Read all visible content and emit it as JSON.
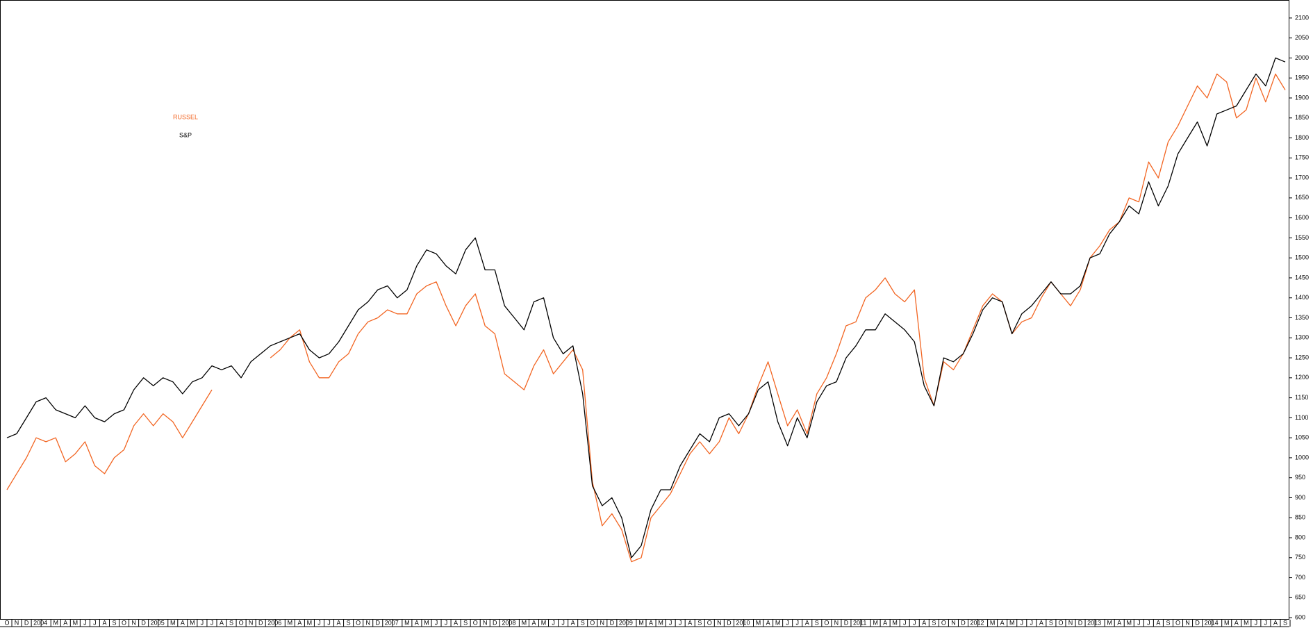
{
  "chart_data": {
    "type": "line",
    "categories": [
      "O",
      "N",
      "D",
      "2004",
      null,
      "M",
      "A",
      "M",
      "J",
      "J",
      "A",
      "S",
      "O",
      "N",
      "D",
      "2005",
      null,
      "M",
      "A",
      "M",
      "J",
      "J",
      "A",
      "S",
      "O",
      "N",
      "D",
      "2006",
      null,
      "M",
      "A",
      "M",
      "J",
      "J",
      "A",
      "S",
      "O",
      "N",
      "D",
      "2007",
      null,
      "M",
      "A",
      "M",
      "J",
      "J",
      "A",
      "S",
      "O",
      "N",
      "D",
      "2008",
      null,
      "M",
      "A",
      "M",
      "J",
      "J",
      "A",
      "S",
      "O",
      "N",
      "D",
      "2009",
      null,
      "M",
      "A",
      "M",
      "J",
      "J",
      "A",
      "S",
      "O",
      "N",
      "D",
      "2010",
      null,
      "M",
      "A",
      "M",
      "J",
      "J",
      "A",
      "S",
      "O",
      "N",
      "D",
      "2011",
      null,
      "M",
      "A",
      "M",
      "J",
      "J",
      "A",
      "S",
      "O",
      "N",
      "D",
      "2012",
      null,
      "M",
      "A",
      "M",
      "J",
      "J",
      "A",
      "S",
      "O",
      "N",
      "D",
      "2013",
      null,
      "M",
      "A",
      "M",
      "J",
      "J",
      "A",
      "S",
      "O",
      "N",
      "D",
      "2014",
      null,
      "M",
      "A",
      "M",
      "J",
      "J",
      "A",
      "S"
    ],
    "series": [
      {
        "name": "RUSSEL",
        "color": "#f26522",
        "values": [
          920,
          960,
          1000,
          1050,
          1040,
          1050,
          990,
          1010,
          1040,
          980,
          960,
          1000,
          1020,
          1080,
          1110,
          1080,
          1110,
          1090,
          1050,
          1090,
          1130,
          1170,
          null,
          null,
          null,
          null,
          null,
          1250,
          1270,
          1300,
          1320,
          1240,
          1200,
          1200,
          1240,
          1260,
          1310,
          1340,
          1350,
          1370,
          1360,
          1360,
          1410,
          1430,
          1440,
          1380,
          1330,
          1380,
          1410,
          1330,
          1310,
          1210,
          1190,
          1170,
          1230,
          1270,
          1210,
          1240,
          1270,
          1220,
          940,
          830,
          860,
          820,
          740,
          750,
          850,
          880,
          910,
          960,
          1010,
          1040,
          1010,
          1040,
          1100,
          1060,
          1110,
          1180,
          1240,
          1160,
          1080,
          1120,
          1060,
          1160,
          1200,
          1260,
          1330,
          1340,
          1400,
          1420,
          1450,
          1410,
          1390,
          1420,
          1200,
          1130,
          1240,
          1220,
          1260,
          1320,
          1380,
          1410,
          1390,
          1310,
          1340,
          1350,
          1400,
          1440,
          1410,
          1380,
          1420,
          1500,
          1530,
          1570,
          1590,
          1650,
          1640,
          1740,
          1700,
          1790,
          1830,
          1880,
          1930,
          1900,
          1960,
          1940,
          1850,
          1870,
          1950,
          1890,
          1960,
          1920
        ]
      },
      {
        "name": "S&P",
        "color": "#000000",
        "values": [
          1050,
          1060,
          1100,
          1140,
          1150,
          1120,
          1110,
          1100,
          1130,
          1100,
          1090,
          1110,
          1120,
          1170,
          1200,
          1180,
          1200,
          1190,
          1160,
          1190,
          1200,
          1230,
          1220,
          1230,
          1200,
          1240,
          1260,
          1280,
          1290,
          1300,
          1310,
          1270,
          1250,
          1260,
          1290,
          1330,
          1370,
          1390,
          1420,
          1430,
          1400,
          1420,
          1480,
          1520,
          1510,
          1480,
          1460,
          1520,
          1550,
          1470,
          1470,
          1380,
          1350,
          1320,
          1390,
          1400,
          1300,
          1260,
          1280,
          1160,
          930,
          880,
          900,
          850,
          750,
          780,
          870,
          920,
          920,
          980,
          1020,
          1060,
          1040,
          1100,
          1110,
          1080,
          1110,
          1170,
          1190,
          1090,
          1030,
          1100,
          1050,
          1140,
          1180,
          1190,
          1250,
          1280,
          1320,
          1320,
          1360,
          1340,
          1320,
          1290,
          1180,
          1130,
          1250,
          1240,
          1260,
          1310,
          1370,
          1400,
          1390,
          1310,
          1360,
          1380,
          1410,
          1440,
          1410,
          1410,
          1430,
          1500,
          1510,
          1560,
          1590,
          1630,
          1610,
          1690,
          1630,
          1680,
          1760,
          1800,
          1840,
          1780,
          1860,
          1870,
          1880,
          1920,
          1960,
          1930,
          2000,
          1990
        ]
      }
    ],
    "ylim": [
      595,
      2145
    ],
    "yticks": [
      600,
      650,
      700,
      750,
      800,
      850,
      900,
      950,
      1000,
      1050,
      1100,
      1150,
      1200,
      1250,
      1300,
      1350,
      1400,
      1450,
      1500,
      1550,
      1600,
      1650,
      1700,
      1750,
      1800,
      1850,
      1900,
      1950,
      2000,
      2050,
      2100
    ]
  }
}
